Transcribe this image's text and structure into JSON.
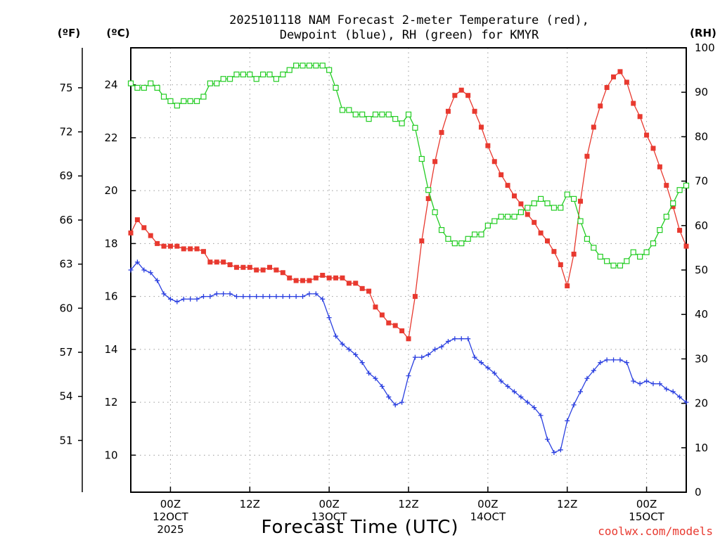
{
  "chart_data": {
    "type": "line",
    "title_line1": "2025101118 NAM Forecast 2-meter Temperature (red),",
    "title_line2": "Dewpoint (blue), RH (green) for KMYR",
    "xlabel": "Forecast Time (UTC)",
    "credit": "coolwx.com/models",
    "units": {
      "f": "(ºF)",
      "c": "(ºC)",
      "rh": "(RH)"
    },
    "colors": {
      "temperature": "#e8392f",
      "dewpoint": "#2a3fe0",
      "rh": "#22cc22",
      "grid": "#9a9a9a"
    },
    "x_unit": "forecast hour",
    "xlim": [
      0,
      84
    ],
    "ylim_c": [
      8.6,
      25.4
    ],
    "ylim_f": [
      47.48,
      77.72
    ],
    "ylim_rh": [
      0,
      100
    ],
    "grid": true,
    "c_ticks": [
      10,
      12,
      14,
      16,
      18,
      20,
      22,
      24
    ],
    "f_ticks": [
      51,
      54,
      57,
      60,
      63,
      66,
      69,
      72,
      75
    ],
    "rh_ticks": [
      0,
      10,
      20,
      30,
      40,
      50,
      60,
      70,
      80,
      90,
      100
    ],
    "x_ticks": [
      {
        "hour": 6,
        "lines": [
          "00Z",
          "12OCT",
          "2025"
        ]
      },
      {
        "hour": 18,
        "lines": [
          "12Z"
        ]
      },
      {
        "hour": 30,
        "lines": [
          "00Z",
          "13OCT"
        ]
      },
      {
        "hour": 42,
        "lines": [
          "12Z"
        ]
      },
      {
        "hour": 54,
        "lines": [
          "00Z",
          "14OCT"
        ]
      },
      {
        "hour": 66,
        "lines": [
          "12Z"
        ]
      },
      {
        "hour": 78,
        "lines": [
          "00Z",
          "15OCT"
        ]
      }
    ],
    "series": [
      {
        "name": "Temperature",
        "unit": "C",
        "marker": "square-filled",
        "data": [
          [
            0,
            18.4
          ],
          [
            1,
            18.9
          ],
          [
            2,
            18.6
          ],
          [
            3,
            18.3
          ],
          [
            4,
            18.0
          ],
          [
            5,
            17.9
          ],
          [
            6,
            17.9
          ],
          [
            7,
            17.9
          ],
          [
            8,
            17.8
          ],
          [
            9,
            17.8
          ],
          [
            10,
            17.8
          ],
          [
            11,
            17.7
          ],
          [
            12,
            17.3
          ],
          [
            13,
            17.3
          ],
          [
            14,
            17.3
          ],
          [
            15,
            17.2
          ],
          [
            16,
            17.1
          ],
          [
            17,
            17.1
          ],
          [
            18,
            17.1
          ],
          [
            19,
            17.0
          ],
          [
            20,
            17.0
          ],
          [
            21,
            17.1
          ],
          [
            22,
            17.0
          ],
          [
            23,
            16.9
          ],
          [
            24,
            16.7
          ],
          [
            25,
            16.6
          ],
          [
            26,
            16.6
          ],
          [
            27,
            16.6
          ],
          [
            28,
            16.7
          ],
          [
            29,
            16.8
          ],
          [
            30,
            16.7
          ],
          [
            31,
            16.7
          ],
          [
            32,
            16.7
          ],
          [
            33,
            16.5
          ],
          [
            34,
            16.5
          ],
          [
            35,
            16.3
          ],
          [
            36,
            16.2
          ],
          [
            37,
            15.6
          ],
          [
            38,
            15.3
          ],
          [
            39,
            15.0
          ],
          [
            40,
            14.9
          ],
          [
            41,
            14.7
          ],
          [
            42,
            14.4
          ],
          [
            43,
            16.0
          ],
          [
            44,
            18.1
          ],
          [
            45,
            19.7
          ],
          [
            46,
            21.1
          ],
          [
            47,
            22.2
          ],
          [
            48,
            23.0
          ],
          [
            49,
            23.6
          ],
          [
            50,
            23.8
          ],
          [
            51,
            23.6
          ],
          [
            52,
            23.0
          ],
          [
            53,
            22.4
          ],
          [
            54,
            21.7
          ],
          [
            55,
            21.1
          ],
          [
            56,
            20.6
          ],
          [
            57,
            20.2
          ],
          [
            58,
            19.8
          ],
          [
            59,
            19.5
          ],
          [
            60,
            19.1
          ],
          [
            61,
            18.8
          ],
          [
            62,
            18.4
          ],
          [
            63,
            18.1
          ],
          [
            64,
            17.7
          ],
          [
            65,
            17.2
          ],
          [
            66,
            16.4
          ],
          [
            67,
            17.6
          ],
          [
            68,
            19.6
          ],
          [
            69,
            21.3
          ],
          [
            70,
            22.4
          ],
          [
            71,
            23.2
          ],
          [
            72,
            23.9
          ],
          [
            73,
            24.3
          ],
          [
            74,
            24.5
          ],
          [
            75,
            24.1
          ],
          [
            76,
            23.3
          ],
          [
            77,
            22.8
          ],
          [
            78,
            22.1
          ],
          [
            79,
            21.6
          ],
          [
            80,
            20.9
          ],
          [
            81,
            20.2
          ],
          [
            82,
            19.4
          ],
          [
            83,
            18.5
          ],
          [
            84,
            17.9
          ]
        ]
      },
      {
        "name": "Dewpoint",
        "unit": "C",
        "marker": "plus",
        "data": [
          [
            0,
            17.0
          ],
          [
            1,
            17.3
          ],
          [
            2,
            17.0
          ],
          [
            3,
            16.9
          ],
          [
            4,
            16.6
          ],
          [
            5,
            16.1
          ],
          [
            6,
            15.9
          ],
          [
            7,
            15.8
          ],
          [
            8,
            15.9
          ],
          [
            9,
            15.9
          ],
          [
            10,
            15.9
          ],
          [
            11,
            16.0
          ],
          [
            12,
            16.0
          ],
          [
            13,
            16.1
          ],
          [
            14,
            16.1
          ],
          [
            15,
            16.1
          ],
          [
            16,
            16.0
          ],
          [
            17,
            16.0
          ],
          [
            18,
            16.0
          ],
          [
            19,
            16.0
          ],
          [
            20,
            16.0
          ],
          [
            21,
            16.0
          ],
          [
            22,
            16.0
          ],
          [
            23,
            16.0
          ],
          [
            24,
            16.0
          ],
          [
            25,
            16.0
          ],
          [
            26,
            16.0
          ],
          [
            27,
            16.1
          ],
          [
            28,
            16.1
          ],
          [
            29,
            15.9
          ],
          [
            30,
            15.2
          ],
          [
            31,
            14.5
          ],
          [
            32,
            14.2
          ],
          [
            33,
            14.0
          ],
          [
            34,
            13.8
          ],
          [
            35,
            13.5
          ],
          [
            36,
            13.1
          ],
          [
            37,
            12.9
          ],
          [
            38,
            12.6
          ],
          [
            39,
            12.2
          ],
          [
            40,
            11.9
          ],
          [
            41,
            12.0
          ],
          [
            42,
            13.0
          ],
          [
            43,
            13.7
          ],
          [
            44,
            13.7
          ],
          [
            45,
            13.8
          ],
          [
            46,
            14.0
          ],
          [
            47,
            14.1
          ],
          [
            48,
            14.3
          ],
          [
            49,
            14.4
          ],
          [
            50,
            14.4
          ],
          [
            51,
            14.4
          ],
          [
            52,
            13.7
          ],
          [
            53,
            13.5
          ],
          [
            54,
            13.3
          ],
          [
            55,
            13.1
          ],
          [
            56,
            12.8
          ],
          [
            57,
            12.6
          ],
          [
            58,
            12.4
          ],
          [
            59,
            12.2
          ],
          [
            60,
            12.0
          ],
          [
            61,
            11.8
          ],
          [
            62,
            11.5
          ],
          [
            63,
            10.6
          ],
          [
            64,
            10.1
          ],
          [
            65,
            10.2
          ],
          [
            66,
            11.3
          ],
          [
            67,
            11.9
          ],
          [
            68,
            12.4
          ],
          [
            69,
            12.9
          ],
          [
            70,
            13.2
          ],
          [
            71,
            13.5
          ],
          [
            72,
            13.6
          ],
          [
            73,
            13.6
          ],
          [
            74,
            13.6
          ],
          [
            75,
            13.5
          ],
          [
            76,
            12.8
          ],
          [
            77,
            12.7
          ],
          [
            78,
            12.8
          ],
          [
            79,
            12.7
          ],
          [
            80,
            12.7
          ],
          [
            81,
            12.5
          ],
          [
            82,
            12.4
          ],
          [
            83,
            12.2
          ],
          [
            84,
            12.0
          ]
        ]
      },
      {
        "name": "RH",
        "unit": "%",
        "marker": "square-open",
        "data": [
          [
            0,
            92
          ],
          [
            1,
            91
          ],
          [
            2,
            91
          ],
          [
            3,
            92
          ],
          [
            4,
            91
          ],
          [
            5,
            89
          ],
          [
            6,
            88
          ],
          [
            7,
            87
          ],
          [
            8,
            88
          ],
          [
            9,
            88
          ],
          [
            10,
            88
          ],
          [
            11,
            89
          ],
          [
            12,
            92
          ],
          [
            13,
            92
          ],
          [
            14,
            93
          ],
          [
            15,
            93
          ],
          [
            16,
            94
          ],
          [
            17,
            94
          ],
          [
            18,
            94
          ],
          [
            19,
            93
          ],
          [
            20,
            94
          ],
          [
            21,
            94
          ],
          [
            22,
            93
          ],
          [
            23,
            94
          ],
          [
            24,
            95
          ],
          [
            25,
            96
          ],
          [
            26,
            96
          ],
          [
            27,
            96
          ],
          [
            28,
            96
          ],
          [
            29,
            96
          ],
          [
            30,
            95
          ],
          [
            31,
            91
          ],
          [
            32,
            86
          ],
          [
            33,
            86
          ],
          [
            34,
            85
          ],
          [
            35,
            85
          ],
          [
            36,
            84
          ],
          [
            37,
            85
          ],
          [
            38,
            85
          ],
          [
            39,
            85
          ],
          [
            40,
            84
          ],
          [
            41,
            83
          ],
          [
            42,
            85
          ],
          [
            43,
            82
          ],
          [
            44,
            75
          ],
          [
            45,
            68
          ],
          [
            46,
            63
          ],
          [
            47,
            59
          ],
          [
            48,
            57
          ],
          [
            49,
            56
          ],
          [
            50,
            56
          ],
          [
            51,
            57
          ],
          [
            52,
            58
          ],
          [
            53,
            58
          ],
          [
            54,
            60
          ],
          [
            55,
            61
          ],
          [
            56,
            62
          ],
          [
            57,
            62
          ],
          [
            58,
            62
          ],
          [
            59,
            63
          ],
          [
            60,
            64
          ],
          [
            61,
            65
          ],
          [
            62,
            66
          ],
          [
            63,
            65
          ],
          [
            64,
            64
          ],
          [
            65,
            64
          ],
          [
            66,
            67
          ],
          [
            67,
            66
          ],
          [
            68,
            61
          ],
          [
            69,
            57
          ],
          [
            70,
            55
          ],
          [
            71,
            53
          ],
          [
            72,
            52
          ],
          [
            73,
            51
          ],
          [
            74,
            51
          ],
          [
            75,
            52
          ],
          [
            76,
            54
          ],
          [
            77,
            53
          ],
          [
            78,
            54
          ],
          [
            79,
            56
          ],
          [
            80,
            59
          ],
          [
            81,
            62
          ],
          [
            82,
            65
          ],
          [
            83,
            68
          ],
          [
            84,
            69
          ]
        ]
      }
    ]
  }
}
